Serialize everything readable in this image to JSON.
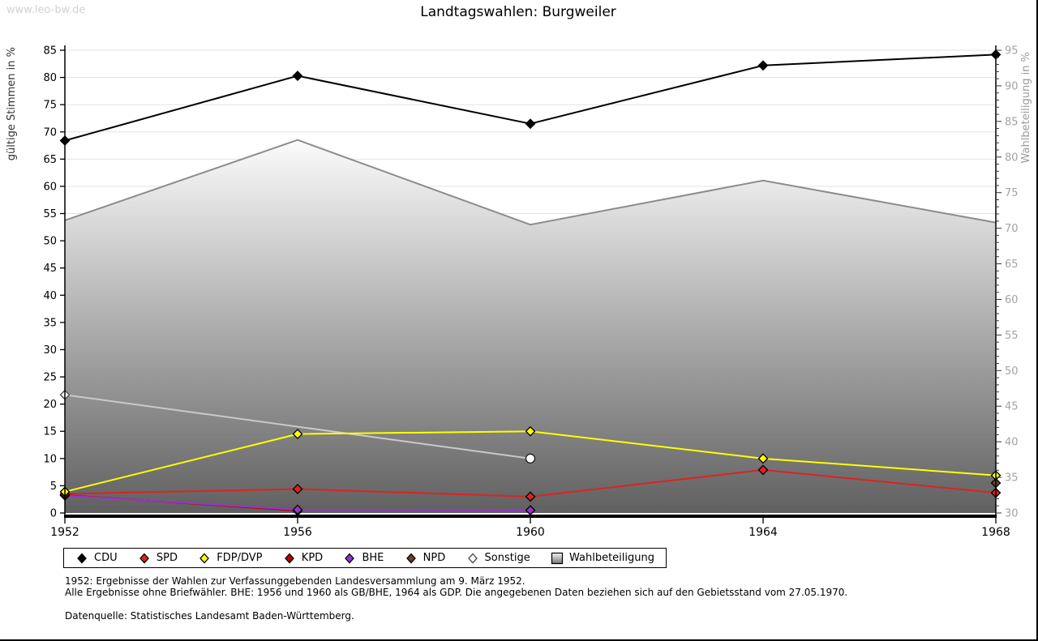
{
  "watermark": "www.leo-bw.de",
  "title": "Landtagswahlen: Burgweiler",
  "footnotes": {
    "line1": "1952: Ergebnisse der Wahlen zur Verfassunggebenden Landesversammlung am 9. März 1952.",
    "line2": "Alle Ergebnisse ohne Briefwähler. BHE: 1956 und 1960 als GB/BHE, 1964 als GDP. Die angegebenen Daten beziehen sich auf den Gebietsstand vom 27.05.1970.",
    "source": "Datenquelle: Statistisches Landesamt Baden-Württemberg."
  },
  "chart_data": {
    "type": "line",
    "title": "Landtagswahlen: Burgweiler",
    "categories": [
      "1952",
      "1956",
      "1960",
      "1964",
      "1968"
    ],
    "grid": true,
    "legend_position": "bottom",
    "left_axis": {
      "label": "gültige Stimmen in %",
      "min": 0,
      "max": 85,
      "step": 5
    },
    "right_axis": {
      "label": "Wahlbeteiligung in %",
      "min": 30,
      "max": 95,
      "step": 5,
      "minor_step": 1
    },
    "colors": {
      "grid": "#e3e3e3",
      "axis": "#000000",
      "right_tick_text": "#a3a3a3",
      "area_edge": "#8c8c8c",
      "area_top": "#fbfbfb",
      "area_bottom": "#606060"
    },
    "series": [
      {
        "name": "CDU",
        "type": "line",
        "axis": "left",
        "z": 7,
        "color": "#000000",
        "marker": "diamond",
        "values": [
          68.4,
          80.3,
          71.5,
          82.2,
          84.2
        ]
      },
      {
        "name": "SPD",
        "type": "line",
        "axis": "left",
        "z": 4,
        "color": "#dd2222",
        "marker": "diamond",
        "values": [
          3.5,
          4.4,
          3.0,
          7.9,
          3.7
        ]
      },
      {
        "name": "FDP/DVP",
        "type": "line",
        "axis": "left",
        "z": 5,
        "color": "#ffff00",
        "marker": "diamond",
        "values": [
          3.9,
          14.5,
          15.0,
          10.0,
          6.9
        ]
      },
      {
        "name": "KPD",
        "type": "line",
        "axis": "left",
        "z": 2,
        "color": "#bb0000",
        "marker": "diamond",
        "values": [
          3.3,
          0.4,
          null,
          null,
          null
        ]
      },
      {
        "name": "BHE",
        "type": "line",
        "axis": "left",
        "z": 3,
        "color": "#9933cc",
        "marker": "diamond",
        "values": [
          3.2,
          0.6,
          0.5,
          null,
          null
        ]
      },
      {
        "name": "NPD",
        "type": "line",
        "axis": "left",
        "z": 8,
        "color": "#6b4226",
        "marker": "diamond",
        "values": [
          null,
          null,
          null,
          null,
          5.5
        ]
      },
      {
        "name": "Sonstige",
        "type": "line",
        "axis": "left",
        "z": 1,
        "color": "#c9c9c9",
        "marker": "diamond",
        "marker_fill": "#fafafa",
        "marker_stroke": "#444444",
        "markers": [
          "diamond",
          null,
          "circle",
          null,
          null
        ],
        "values": [
          21.7,
          null,
          10.0,
          null,
          null
        ]
      },
      {
        "name": "Wahlbeteiligung",
        "type": "area",
        "axis": "right",
        "z": 0,
        "color": "#bdbdbd",
        "values": [
          71.1,
          82.4,
          70.5,
          76.7,
          70.8
        ]
      }
    ]
  }
}
